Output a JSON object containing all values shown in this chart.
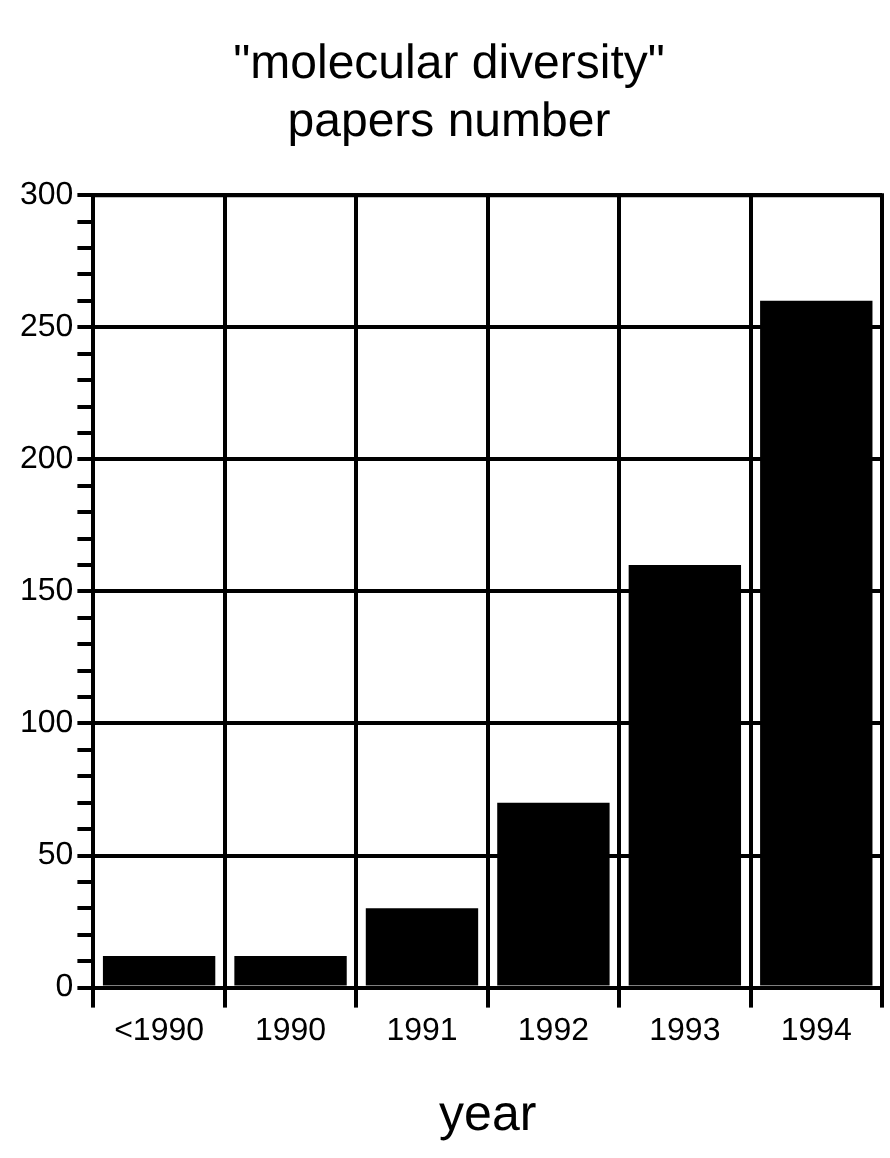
{
  "chart_data": {
    "type": "bar",
    "title": [
      "\"molecular diversity\"",
      "papers number"
    ],
    "xlabel": "year",
    "categories": [
      "<1990",
      "1990",
      "1991",
      "1992",
      "1993",
      "1994"
    ],
    "values": [
      12,
      12,
      30,
      70,
      160,
      260
    ],
    "color": "#000000",
    "ylim": [
      0,
      300
    ],
    "yticks": [
      0,
      {
        "value": 10,
        "label": null
      },
      {
        "value": 20,
        "label": null
      },
      {
        "value": 30,
        "label": null
      },
      {
        "value": 40,
        "label": null
      },
      50,
      {
        "value": 60,
        "label": null
      },
      {
        "value": 70,
        "label": null
      },
      {
        "value": 80,
        "label": null
      },
      {
        "value": 90,
        "label": null
      },
      100,
      {
        "value": 110,
        "label": null
      },
      {
        "value": 120,
        "label": null
      },
      {
        "value": 130,
        "label": null
      },
      {
        "value": 140,
        "label": null
      },
      150,
      {
        "value": 160,
        "label": null
      },
      {
        "value": 170,
        "label": null
      },
      {
        "value": 180,
        "label": null
      },
      {
        "value": 190,
        "label": null
      },
      200,
      {
        "value": 210,
        "label": null
      },
      {
        "value": 220,
        "label": null
      },
      {
        "value": 230,
        "label": null
      },
      {
        "value": 240,
        "label": null
      },
      250,
      {
        "value": 260,
        "label": null
      },
      {
        "value": 270,
        "label": null
      },
      {
        "value": 280,
        "label": null
      },
      {
        "value": 290,
        "label": null
      },
      300
    ],
    "grid": true,
    "legend": false
  }
}
